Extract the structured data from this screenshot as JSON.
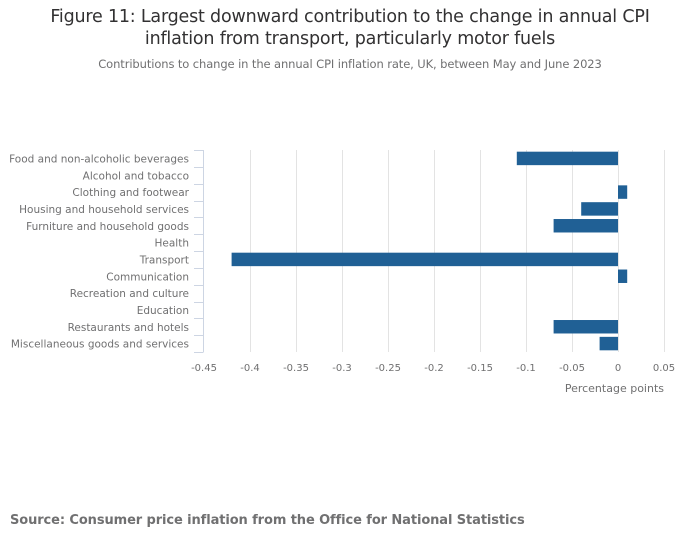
{
  "chart_data": {
    "type": "bar",
    "orientation": "horizontal",
    "title": "Figure 11: Largest downward contribution to the change in annual CPI inflation from transport, particularly motor fuels",
    "title_lines": [
      "Figure 11: Largest downward contribution to the change in annual CPI",
      "inflation from transport, particularly motor fuels"
    ],
    "subtitle": "Contributions to change in the annual CPI inflation rate, UK, between May and June 2023",
    "xlabel": "Percentage points",
    "ylabel": "",
    "xlim": [
      -0.45,
      0.05
    ],
    "xticks": [
      -0.45,
      -0.4,
      -0.35,
      -0.3,
      -0.25,
      -0.2,
      -0.15,
      -0.1,
      -0.05,
      0,
      0.05
    ],
    "xtick_labels": [
      "-0.45",
      "-0.4",
      "-0.35",
      "-0.3",
      "-0.25",
      "-0.2",
      "-0.15",
      "-0.1",
      "-0.05",
      "0",
      "0.05"
    ],
    "grid": true,
    "categories": [
      "Food and non-alcoholic beverages",
      "Alcohol and tobacco",
      "Clothing and footwear",
      "Housing and household services",
      "Furniture and household goods",
      "Health",
      "Transport",
      "Communication",
      "Recreation and culture",
      "Education",
      "Restaurants and hotels",
      "Miscellaneous goods and services"
    ],
    "values": [
      -0.11,
      0,
      0.01,
      -0.04,
      -0.07,
      0,
      -0.42,
      0.01,
      0,
      0,
      -0.07,
      -0.02
    ],
    "bar_color": "#206095",
    "source": "Source: Consumer price inflation from the Office for National Statistics"
  }
}
